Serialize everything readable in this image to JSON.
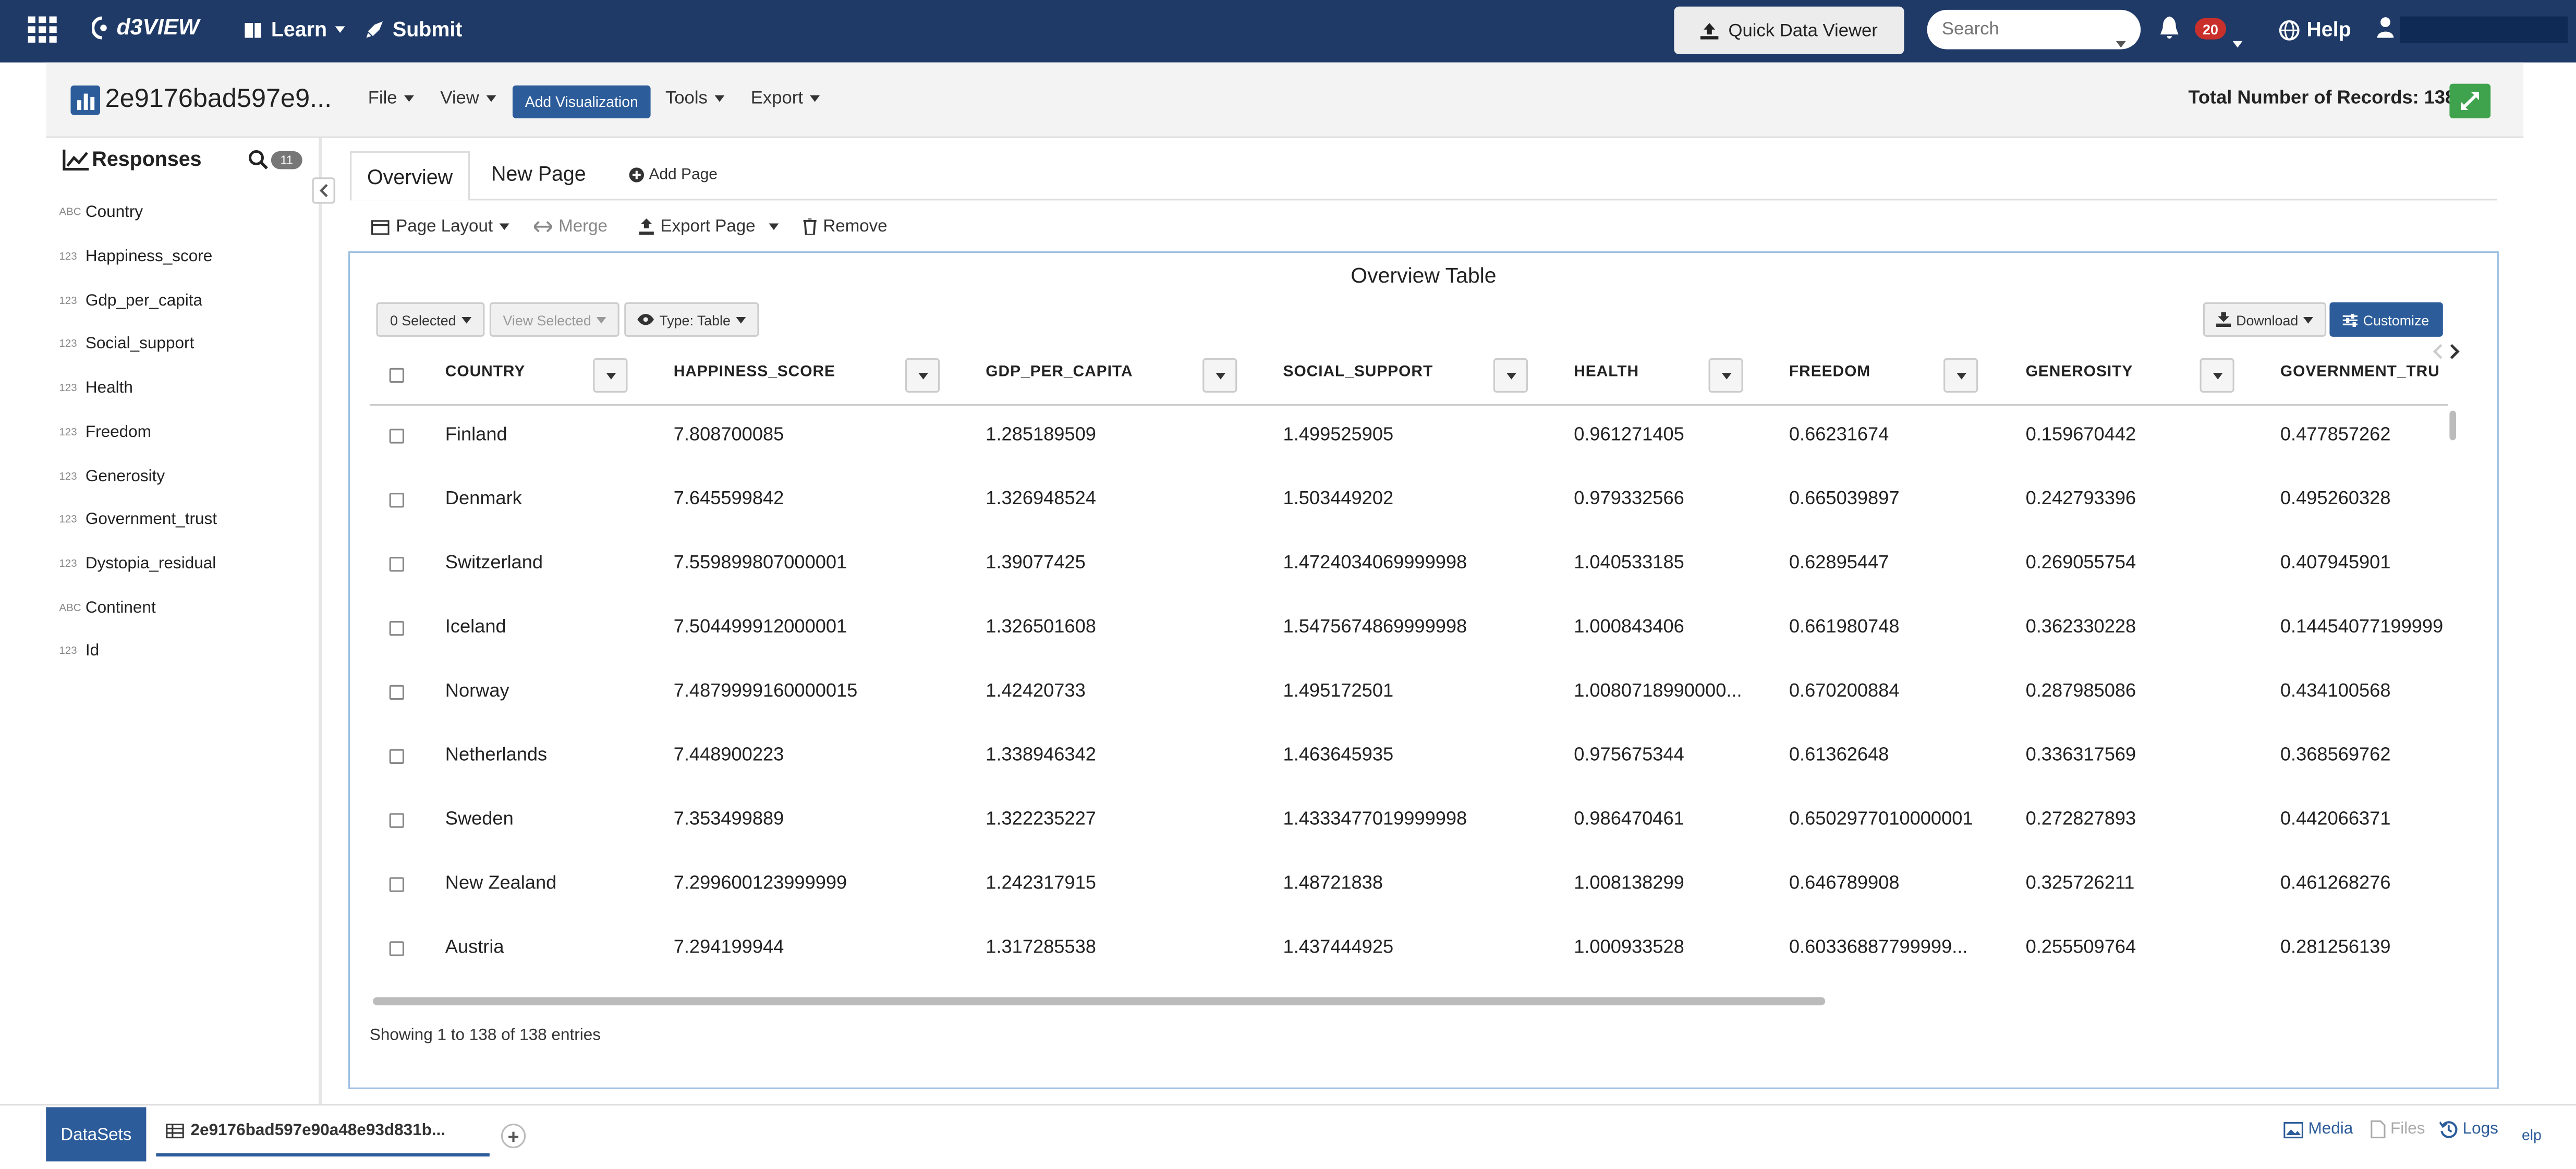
{
  "topnav": {
    "brand": "d3VIEW",
    "learn": "Learn",
    "submit": "Submit",
    "quick_data_viewer": "Quick Data Viewer",
    "search_placeholder": "Search",
    "notifications": "20",
    "help": "Help"
  },
  "header": {
    "doc_title": "2e9176bad597e9...",
    "menus": [
      "File",
      "View",
      "Tools",
      "Export"
    ],
    "add_visualization": "Add Visualization",
    "total_records": "Total Number of Records: 138"
  },
  "sidebar": {
    "title": "Responses",
    "count": "11",
    "fields": [
      {
        "type": "ABC",
        "name": "Country"
      },
      {
        "type": "123",
        "name": "Happiness_score"
      },
      {
        "type": "123",
        "name": "Gdp_per_capita"
      },
      {
        "type": "123",
        "name": "Social_support"
      },
      {
        "type": "123",
        "name": "Health"
      },
      {
        "type": "123",
        "name": "Freedom"
      },
      {
        "type": "123",
        "name": "Generosity"
      },
      {
        "type": "123",
        "name": "Government_trust"
      },
      {
        "type": "123",
        "name": "Dystopia_residual"
      },
      {
        "type": "ABC",
        "name": "Continent"
      },
      {
        "type": "123",
        "name": "Id"
      }
    ]
  },
  "tabs": {
    "overview": "Overview",
    "new_page": "New Page",
    "add_page": "Add Page"
  },
  "toolbar": {
    "page_layout": "Page Layout",
    "merge": "Merge",
    "export_page": "Export Page",
    "remove": "Remove"
  },
  "panel": {
    "title": "Overview Table",
    "selected": "0 Selected",
    "view_selected": "View Selected",
    "type": "Type: Table",
    "download": "Download",
    "customize": "Customize",
    "entries": "Showing 1 to 138 of 138 entries"
  },
  "table": {
    "columns": [
      "COUNTRY",
      "HAPPINESS_SCORE",
      "GDP_PER_CAPITA",
      "SOCIAL_SUPPORT",
      "HEALTH",
      "FREEDOM",
      "GENEROSITY",
      "GOVERNMENT_TRU"
    ],
    "rows": [
      [
        "Finland",
        "7.808700085",
        "1.285189509",
        "1.499525905",
        "0.961271405",
        "0.66231674",
        "0.159670442",
        "0.477857262"
      ],
      [
        "Denmark",
        "7.645599842",
        "1.326948524",
        "1.503449202",
        "0.979332566",
        "0.665039897",
        "0.242793396",
        "0.495260328"
      ],
      [
        "Switzerland",
        "7.559899807000001",
        "1.39077425",
        "1.4724034069999998",
        "1.040533185",
        "0.62895447",
        "0.269055754",
        "0.407945901"
      ],
      [
        "Iceland",
        "7.504499912000001",
        "1.326501608",
        "1.5475674869999998",
        "1.000843406",
        "0.661980748",
        "0.362330228",
        "0.14454077199999"
      ],
      [
        "Norway",
        "7.4879999160000015",
        "1.42420733",
        "1.495172501",
        "1.0080718990000...",
        "0.670200884",
        "0.287985086",
        "0.434100568"
      ],
      [
        "Netherlands",
        "7.448900223",
        "1.338946342",
        "1.463645935",
        "0.975675344",
        "0.61362648",
        "0.336317569",
        "0.368569762"
      ],
      [
        "Sweden",
        "7.353499889",
        "1.322235227",
        "1.4333477019999998",
        "0.986470461",
        "0.6502977010000001",
        "0.272827893",
        "0.442066371"
      ],
      [
        "New Zealand",
        "7.299600123999999",
        "1.242317915",
        "1.48721838",
        "1.008138299",
        "0.646789908",
        "0.325726211",
        "0.461268276"
      ],
      [
        "Austria",
        "7.294199944",
        "1.317285538",
        "1.437444925",
        "1.000933528",
        "0.60336887799999...",
        "0.255509764",
        "0.281256139"
      ]
    ]
  },
  "footer": {
    "datasets": "DataSets",
    "dataset_tab": "2e9176bad597e90a48e93d831b...",
    "media": "Media",
    "files": "Files",
    "logs": "Logs",
    "help_partial": "elp"
  }
}
